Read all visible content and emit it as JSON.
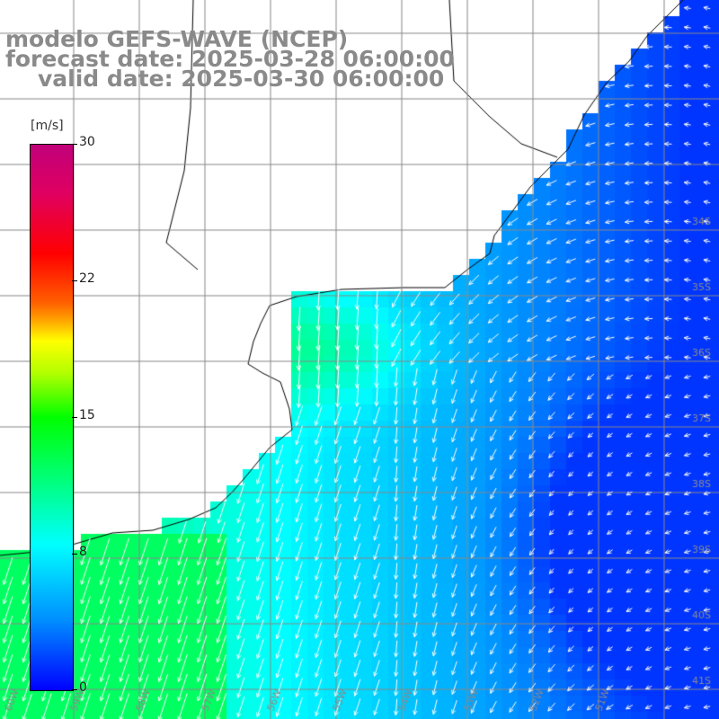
{
  "title": {
    "line1": "modelo GEFS-WAVE (NCEP)",
    "line2": "forecast date: 2025-03-28 06:00:00",
    "line3": "valid date: 2025-03-30 06:00:00"
  },
  "colorbar": {
    "unit": "[m/s]",
    "ticks": [
      "30",
      "22",
      "15",
      "8",
      "0"
    ],
    "range": [
      0,
      30
    ]
  },
  "map": {
    "lat_labels": [
      "34S",
      "35S",
      "36S",
      "37S",
      "38S",
      "39S",
      "40S",
      "41S"
    ],
    "lon_labels": [
      "60W",
      "59W",
      "58W",
      "57W",
      "56W",
      "55W",
      "54W",
      "53W",
      "52W",
      "51W"
    ],
    "variable": "wind speed (m/s) with direction arrows",
    "colors": {
      "land": "#ffffff",
      "coast": "#000000",
      "grid": "#888888",
      "arrow": "#ffffff"
    }
  }
}
